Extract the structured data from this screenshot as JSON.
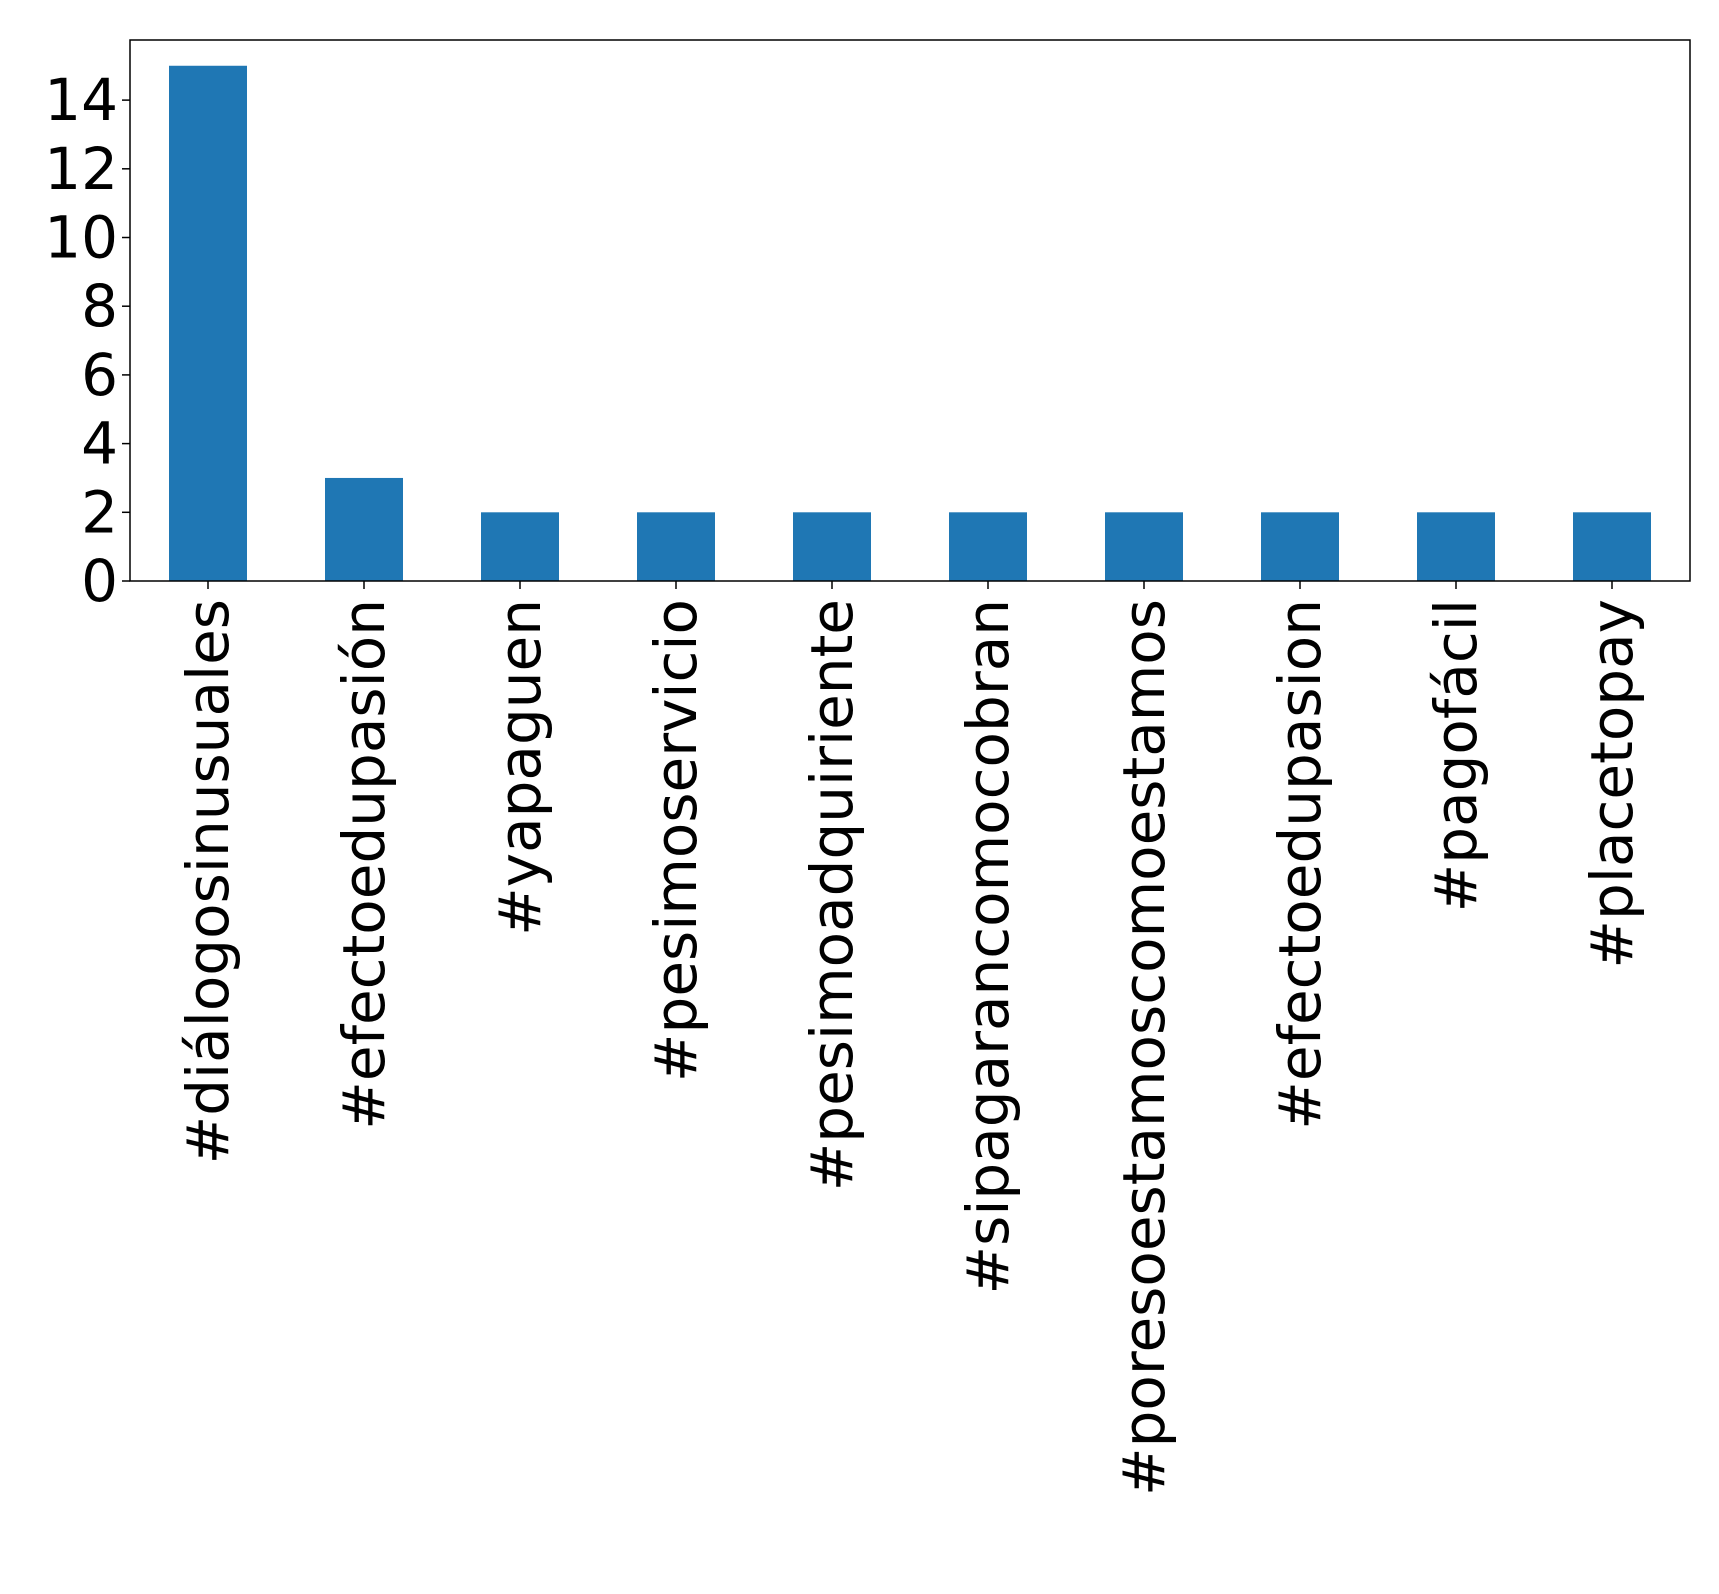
{
  "chart_data": {
    "type": "bar",
    "title": "",
    "xlabel": "",
    "ylabel": "",
    "categories": [
      "#diálogosinusuales",
      "#efectoedupasión",
      "#yapaguen",
      "#pesimoservicio",
      "#pesimoadquiriente",
      "#sipagarancomocobran",
      "#poresoestamoscomoestamos",
      "#efectoedupasion",
      "#pagofácil",
      "#placetopay"
    ],
    "values": [
      15,
      3,
      2,
      2,
      2,
      2,
      2,
      2,
      2,
      2
    ],
    "ylim": [
      0,
      15.75
    ],
    "yticks": [
      0,
      2,
      4,
      6,
      8,
      10,
      12,
      14
    ],
    "ytick_labels": [
      "0",
      "2",
      "4",
      "6",
      "8",
      "10",
      "12",
      "14"
    ],
    "bar_color": "#1f77b4",
    "grid": false,
    "legend": "none"
  }
}
